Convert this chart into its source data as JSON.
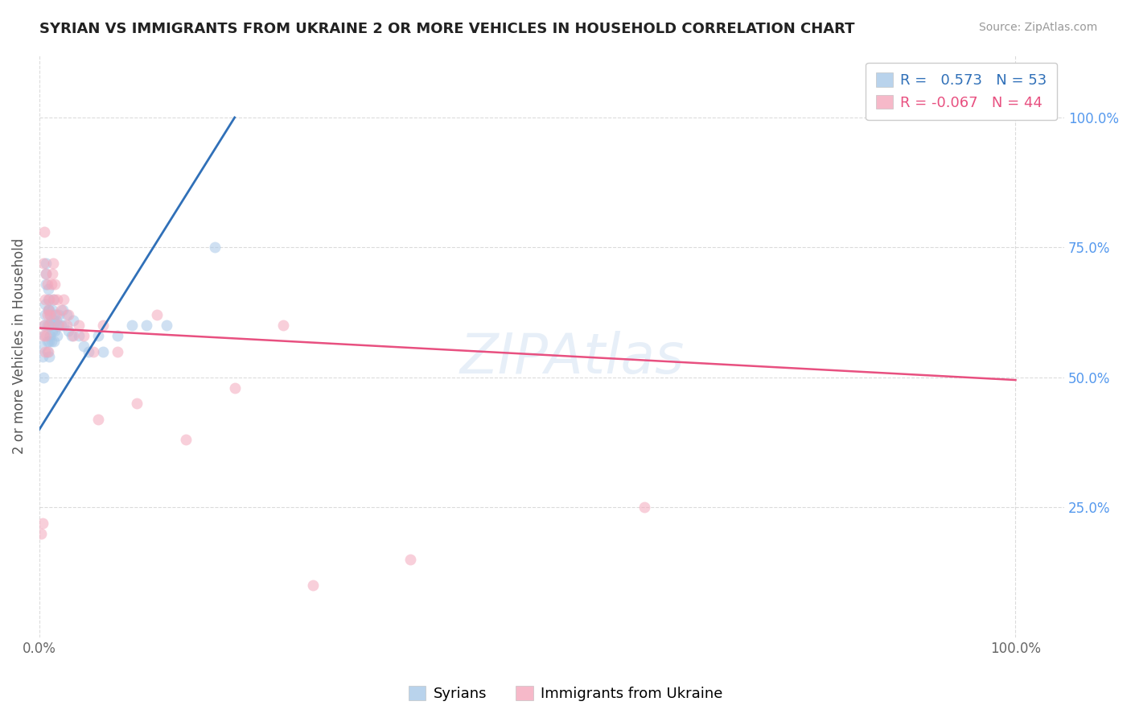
{
  "title": "SYRIAN VS IMMIGRANTS FROM UKRAINE 2 OR MORE VEHICLES IN HOUSEHOLD CORRELATION CHART",
  "source": "Source: ZipAtlas.com",
  "ylabel": "2 or more Vehicles in Household",
  "watermark": "ZIPAtlas",
  "legend_blue_r": "0.573",
  "legend_blue_n": "53",
  "legend_pink_r": "-0.067",
  "legend_pink_n": "44",
  "blue_color": "#a8c8e8",
  "pink_color": "#f4a8bc",
  "line_blue_color": "#3070b8",
  "line_pink_color": "#e85080",
  "legend_blue_text_color": "#3070b8",
  "legend_pink_text_color": "#e85080",
  "right_axis_color": "#5599ee",
  "blue_points_x": [
    0.002,
    0.003,
    0.004,
    0.005,
    0.005,
    0.006,
    0.006,
    0.007,
    0.007,
    0.007,
    0.008,
    0.008,
    0.008,
    0.009,
    0.009,
    0.009,
    0.01,
    0.01,
    0.01,
    0.01,
    0.011,
    0.011,
    0.012,
    0.012,
    0.013,
    0.013,
    0.014,
    0.014,
    0.015,
    0.015,
    0.016,
    0.016,
    0.017,
    0.018,
    0.019,
    0.02,
    0.022,
    0.024,
    0.025,
    0.028,
    0.03,
    0.033,
    0.035,
    0.04,
    0.045,
    0.05,
    0.06,
    0.065,
    0.08,
    0.095,
    0.11,
    0.13,
    0.18
  ],
  "blue_points_y": [
    0.56,
    0.54,
    0.5,
    0.58,
    0.6,
    0.62,
    0.64,
    0.68,
    0.7,
    0.72,
    0.55,
    0.57,
    0.6,
    0.63,
    0.65,
    0.67,
    0.54,
    0.57,
    0.6,
    0.63,
    0.58,
    0.62,
    0.57,
    0.61,
    0.59,
    0.63,
    0.6,
    0.65,
    0.57,
    0.61,
    0.59,
    0.62,
    0.61,
    0.58,
    0.6,
    0.62,
    0.6,
    0.63,
    0.6,
    0.62,
    0.59,
    0.58,
    0.61,
    0.58,
    0.56,
    0.55,
    0.58,
    0.55,
    0.58,
    0.6,
    0.6,
    0.6,
    0.75
  ],
  "pink_points_x": [
    0.002,
    0.003,
    0.004,
    0.004,
    0.005,
    0.005,
    0.006,
    0.006,
    0.007,
    0.007,
    0.008,
    0.008,
    0.009,
    0.009,
    0.01,
    0.01,
    0.011,
    0.012,
    0.013,
    0.014,
    0.015,
    0.016,
    0.017,
    0.018,
    0.02,
    0.022,
    0.025,
    0.028,
    0.03,
    0.035,
    0.04,
    0.045,
    0.055,
    0.06,
    0.065,
    0.08,
    0.1,
    0.12,
    0.15,
    0.2,
    0.25,
    0.28,
    0.38,
    0.62
  ],
  "pink_points_y": [
    0.2,
    0.22,
    0.58,
    0.72,
    0.6,
    0.78,
    0.55,
    0.65,
    0.58,
    0.7,
    0.62,
    0.68,
    0.55,
    0.63,
    0.6,
    0.65,
    0.62,
    0.68,
    0.7,
    0.72,
    0.65,
    0.68,
    0.62,
    0.65,
    0.6,
    0.63,
    0.65,
    0.6,
    0.62,
    0.58,
    0.6,
    0.58,
    0.55,
    0.42,
    0.6,
    0.55,
    0.45,
    0.62,
    0.38,
    0.48,
    0.6,
    0.1,
    0.15,
    0.25
  ],
  "blue_line_x": [
    0.0,
    0.2
  ],
  "blue_line_y": [
    0.4,
    1.0
  ],
  "pink_line_x": [
    0.0,
    1.0
  ],
  "pink_line_y": [
    0.595,
    0.495
  ],
  "ylim": [
    0.0,
    1.12
  ],
  "xlim": [
    0.0,
    1.05
  ],
  "y_ticks": [
    0.25,
    0.5,
    0.75,
    1.0
  ],
  "y_tick_labels": [
    "25.0%",
    "50.0%",
    "75.0%",
    "100.0%"
  ],
  "x_ticks": [
    0.0,
    1.0
  ],
  "x_tick_labels": [
    "0.0%",
    "100.0%"
  ],
  "background_color": "#ffffff",
  "grid_color": "#cccccc",
  "marker_size": 100,
  "marker_alpha": 0.55,
  "legend_label_blue": "Syrians",
  "legend_label_pink": "Immigrants from Ukraine"
}
